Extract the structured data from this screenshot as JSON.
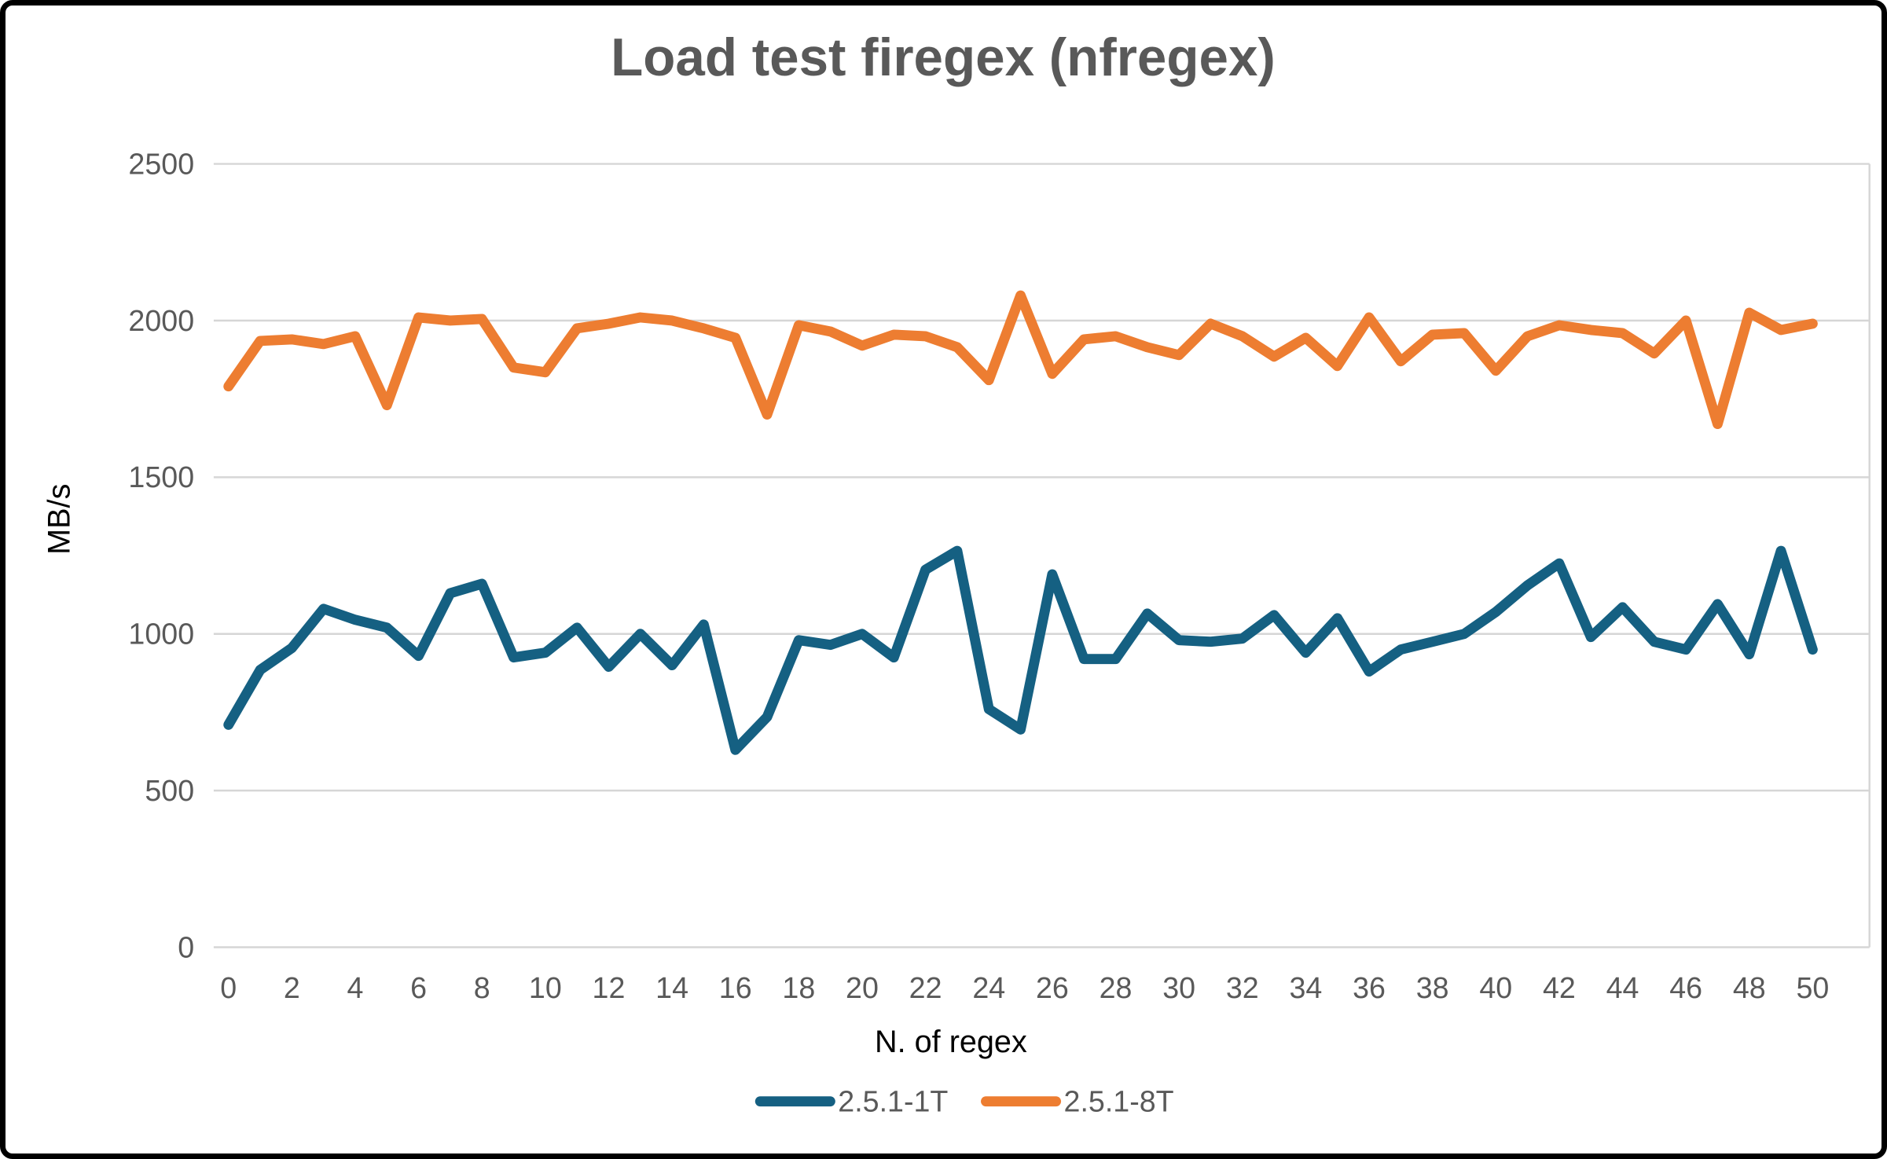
{
  "window": {
    "title": "Load test firegex (nfregex)"
  },
  "chart_data": {
    "type": "line",
    "title": "Load test firegex (nfregex)",
    "xlabel": "N. of regex",
    "ylabel": "MB/s",
    "x": [
      0,
      1,
      2,
      3,
      4,
      5,
      6,
      7,
      8,
      9,
      10,
      11,
      12,
      13,
      14,
      15,
      16,
      17,
      18,
      19,
      20,
      21,
      22,
      23,
      24,
      25,
      26,
      27,
      28,
      29,
      30,
      31,
      32,
      33,
      34,
      35,
      36,
      37,
      38,
      39,
      40,
      41,
      42,
      43,
      44,
      45,
      46,
      47,
      48,
      49,
      50
    ],
    "series": [
      {
        "name": "2.5.1-1T",
        "color": "#156082",
        "values": [
          710,
          885,
          955,
          1080,
          1045,
          1020,
          930,
          1130,
          1160,
          925,
          940,
          1020,
          895,
          1000,
          900,
          1030,
          630,
          735,
          980,
          965,
          1000,
          925,
          1205,
          1265,
          760,
          695,
          1190,
          920,
          920,
          1065,
          980,
          975,
          985,
          1060,
          940,
          1050,
          880,
          950,
          975,
          1000,
          1070,
          1155,
          1225,
          990,
          1085,
          975,
          950,
          1095,
          935,
          1265,
          950
        ]
      },
      {
        "name": "2.5.1-8T",
        "color": "#ED7D31",
        "values": [
          1790,
          1935,
          1940,
          1925,
          1950,
          1730,
          2010,
          2000,
          2005,
          1850,
          1835,
          1975,
          1990,
          2010,
          2000,
          1975,
          1945,
          1700,
          1985,
          1965,
          1920,
          1955,
          1950,
          1915,
          1810,
          2080,
          1830,
          1940,
          1950,
          1915,
          1890,
          1990,
          1950,
          1885,
          1945,
          1855,
          2010,
          1870,
          1955,
          1960,
          1840,
          1950,
          1985,
          1970,
          1960,
          1895,
          2000,
          1670,
          2025,
          1970,
          1990
        ]
      }
    ],
    "ylim": [
      0,
      2500
    ],
    "y_ticks": [
      0,
      500,
      1000,
      1500,
      2000,
      2500
    ],
    "x_ticks": [
      0,
      2,
      4,
      6,
      8,
      10,
      12,
      14,
      16,
      18,
      20,
      22,
      24,
      26,
      28,
      30,
      32,
      34,
      36,
      38,
      40,
      42,
      44,
      46,
      48,
      50
    ],
    "grid": "horizontal",
    "legend_position": "bottom",
    "gridline_color": "#D6D6D6",
    "tick_color": "#595959",
    "title_color": "#595959"
  }
}
